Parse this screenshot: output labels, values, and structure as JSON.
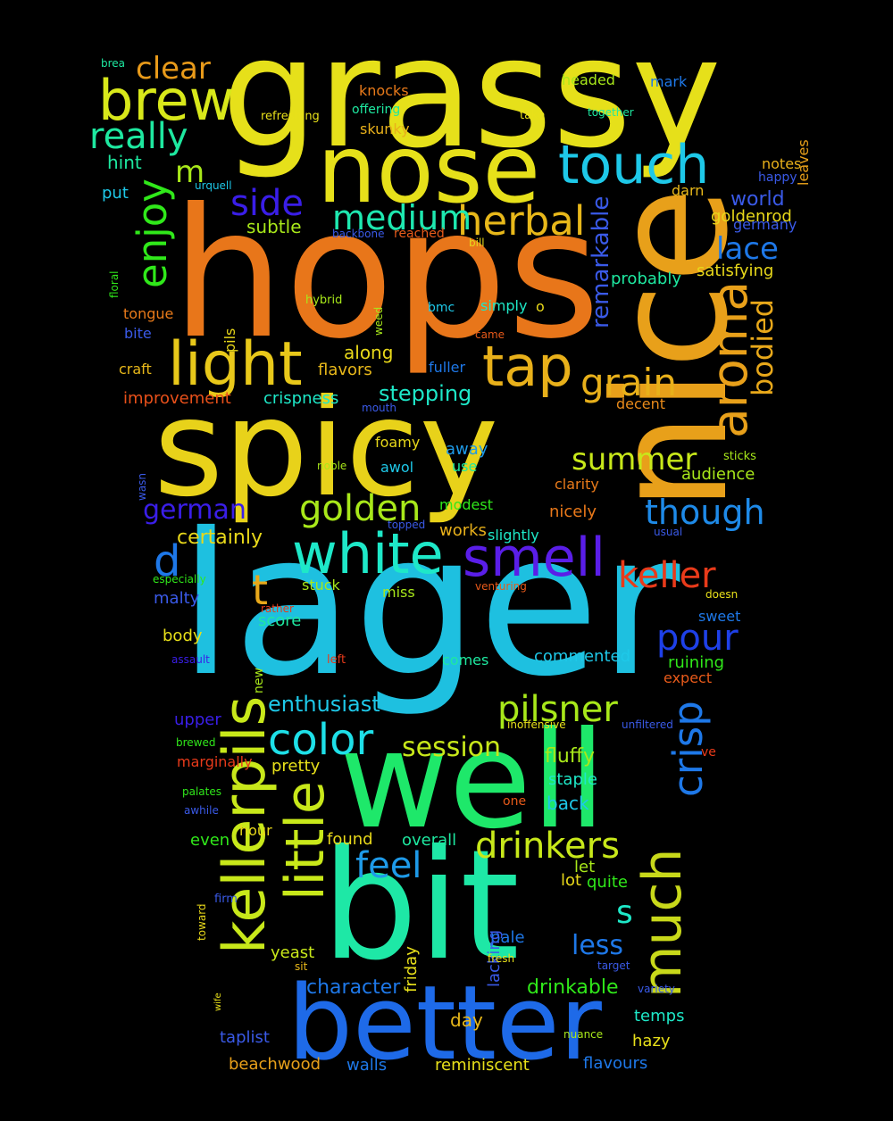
{
  "words": [
    {
      "text": "grassy",
      "color": "#e6e01a"
    },
    {
      "text": "hops",
      "color": "#e8761a"
    },
    {
      "text": "lager",
      "color": "#1ec0e0"
    },
    {
      "text": "spicy",
      "color": "#e8d21a"
    },
    {
      "text": "nice",
      "color": "#e8a01a"
    },
    {
      "text": "bit",
      "color": "#1ee8a6"
    },
    {
      "text": "well",
      "color": "#1ee86a"
    },
    {
      "text": "better",
      "color": "#1e6ae8"
    },
    {
      "text": "nose",
      "color": "#e6e01a"
    },
    {
      "text": "touch",
      "color": "#1ec8e8"
    },
    {
      "text": "white",
      "color": "#1ee8c8"
    },
    {
      "text": "smell",
      "color": "#5a1ee8"
    },
    {
      "text": "light",
      "color": "#e8c81a"
    },
    {
      "text": "tap",
      "color": "#e8b01a"
    },
    {
      "text": "aroma",
      "color": "#e8a01a"
    },
    {
      "text": "kellerpils",
      "color": "#c8e81a"
    },
    {
      "text": "little",
      "color": "#c8e81a"
    },
    {
      "text": "much",
      "color": "#c8d81a"
    },
    {
      "text": "crisp",
      "color": "#1e78e8"
    },
    {
      "text": "brew",
      "color": "#d8e81a"
    },
    {
      "text": "herbal",
      "color": "#e8b81a"
    },
    {
      "text": "color",
      "color": "#1ee0e8"
    },
    {
      "text": "grain",
      "color": "#e8b01a"
    },
    {
      "text": "enjoy",
      "color": "#30e81a"
    },
    {
      "text": "medium",
      "color": "#1ee8b0"
    },
    {
      "text": "side",
      "color": "#3a1ee8"
    },
    {
      "text": "golden",
      "color": "#a8e81a"
    },
    {
      "text": "drinkers",
      "color": "#c8e81a"
    },
    {
      "text": "pilsner",
      "color": "#a8e81a"
    },
    {
      "text": "keller",
      "color": "#e83a1a"
    },
    {
      "text": "pour",
      "color": "#1e40e8"
    },
    {
      "text": "though",
      "color": "#1e8ae8"
    },
    {
      "text": "feel",
      "color": "#1e9ae8"
    },
    {
      "text": "summer",
      "color": "#c8e81a"
    },
    {
      "text": "really",
      "color": "#1ee8a0"
    },
    {
      "text": "clear",
      "color": "#e89a1a"
    },
    {
      "text": "bodied",
      "color": "#e8a81a"
    },
    {
      "text": "remarkable",
      "color": "#3a5ae8"
    },
    {
      "text": "lace",
      "color": "#1e78e8"
    },
    {
      "text": "session",
      "color": "#c8e81a"
    },
    {
      "text": "german",
      "color": "#3a1ee8"
    },
    {
      "text": "enthusiast",
      "color": "#1ec8e8"
    },
    {
      "text": "less",
      "color": "#1e78e8"
    },
    {
      "text": "s",
      "color": "#1ee8c8"
    },
    {
      "text": "d",
      "color": "#1e78e8"
    },
    {
      "text": "t",
      "color": "#e8a81a"
    },
    {
      "text": "m",
      "color": "#a8e81a"
    },
    {
      "text": "stepping",
      "color": "#1ee8c8"
    },
    {
      "text": "certainly",
      "color": "#e8d81a"
    },
    {
      "text": "drinkable",
      "color": "#30e81a"
    },
    {
      "text": "character",
      "color": "#1e78e8"
    },
    {
      "text": "world",
      "color": "#3a5ae8"
    },
    {
      "text": "along",
      "color": "#e8d81a"
    },
    {
      "text": "flavors",
      "color": "#e8b81a"
    },
    {
      "text": "crispness",
      "color": "#1ee8c8"
    },
    {
      "text": "improvement",
      "color": "#e8501a"
    },
    {
      "text": "subtle",
      "color": "#a8e81a"
    },
    {
      "text": "hint",
      "color": "#1ee8a0"
    },
    {
      "text": "put",
      "color": "#1ec8e8"
    },
    {
      "text": "fluffy",
      "color": "#a8e81a"
    },
    {
      "text": "staple",
      "color": "#1ee8c8"
    },
    {
      "text": "back",
      "color": "#1ec8e8"
    },
    {
      "text": "found",
      "color": "#e8d81a"
    },
    {
      "text": "overall",
      "color": "#1ee8a0"
    },
    {
      "text": "hour",
      "color": "#e8d81a"
    },
    {
      "text": "even",
      "color": "#30e81a"
    },
    {
      "text": "taplist",
      "color": "#3a5ae8"
    },
    {
      "text": "beachwood",
      "color": "#e8a01a"
    },
    {
      "text": "walls",
      "color": "#1e78e8"
    },
    {
      "text": "reminiscent",
      "color": "#e8e01a"
    },
    {
      "text": "flavours",
      "color": "#1e78e8"
    },
    {
      "text": "hazy",
      "color": "#e8e01a"
    },
    {
      "text": "temps",
      "color": "#1ee8c8"
    },
    {
      "text": "day",
      "color": "#e8b81a"
    },
    {
      "text": "yeast",
      "color": "#c8e81a"
    },
    {
      "text": "pale",
      "color": "#1e78e8"
    },
    {
      "text": "quite",
      "color": "#30e81a"
    },
    {
      "text": "lot",
      "color": "#e8d81a"
    },
    {
      "text": "let",
      "color": "#a8e81a"
    },
    {
      "text": "friday",
      "color": "#e8e01a"
    },
    {
      "text": "lacking",
      "color": "#3a5ae8"
    },
    {
      "text": "pretty",
      "color": "#e8e01a"
    },
    {
      "text": "upper",
      "color": "#3a1ee8"
    },
    {
      "text": "marginally",
      "color": "#e83a1a"
    },
    {
      "text": "comes",
      "color": "#1ee8a0"
    },
    {
      "text": "commented",
      "color": "#1ec8e8"
    },
    {
      "text": "ruining",
      "color": "#30e81a"
    },
    {
      "text": "expect",
      "color": "#e85a1a"
    },
    {
      "text": "sweet",
      "color": "#1e78e8"
    },
    {
      "text": "score",
      "color": "#1ee8a0"
    },
    {
      "text": "body",
      "color": "#e8e01a"
    },
    {
      "text": "malty",
      "color": "#3a5ae8"
    },
    {
      "text": "stuck",
      "color": "#a8e81a"
    },
    {
      "text": "miss",
      "color": "#a8e81a"
    },
    {
      "text": "works",
      "color": "#e8b01a"
    },
    {
      "text": "slightly",
      "color": "#1ee8c8"
    },
    {
      "text": "modest",
      "color": "#30e81a"
    },
    {
      "text": "nicely",
      "color": "#e8781a"
    },
    {
      "text": "clarity",
      "color": "#e87a1a"
    },
    {
      "text": "audience",
      "color": "#a8e81a"
    },
    {
      "text": "away",
      "color": "#1e9ae8"
    },
    {
      "text": "use",
      "color": "#1ee8a0"
    },
    {
      "text": "awol",
      "color": "#1ec8e8"
    },
    {
      "text": "foamy",
      "color": "#e8d81a"
    },
    {
      "text": "fuller",
      "color": "#1e78e8"
    },
    {
      "text": "decent",
      "color": "#e88a1a"
    },
    {
      "text": "tongue",
      "color": "#e87a1a"
    },
    {
      "text": "bite",
      "color": "#3a5ae8"
    },
    {
      "text": "craft",
      "color": "#e8b81a"
    },
    {
      "text": "pils",
      "color": "#e8d81a"
    },
    {
      "text": "bmc",
      "color": "#1ec8e8"
    },
    {
      "text": "simply",
      "color": "#1ee8c8"
    },
    {
      "text": "o",
      "color": "#e8d81a"
    },
    {
      "text": "probably",
      "color": "#1ee8a0"
    },
    {
      "text": "satisfying",
      "color": "#e8d81a"
    },
    {
      "text": "goldenrod",
      "color": "#e8d81a"
    },
    {
      "text": "germany",
      "color": "#3a5ae8"
    },
    {
      "text": "darn",
      "color": "#e8b81a"
    },
    {
      "text": "notes",
      "color": "#e8b01a"
    },
    {
      "text": "happy",
      "color": "#3a5ae8"
    },
    {
      "text": "headed",
      "color": "#a8e81a"
    },
    {
      "text": "mark",
      "color": "#1e78e8"
    },
    {
      "text": "knocks",
      "color": "#e87a1a"
    },
    {
      "text": "offering",
      "color": "#1ee8a0"
    },
    {
      "text": "skunky",
      "color": "#e8b01a"
    },
    {
      "text": "refreshing",
      "color": "#e8e01a"
    },
    {
      "text": "take",
      "color": "#e8e01a"
    },
    {
      "text": "together",
      "color": "#1ee8a0"
    },
    {
      "text": "leaves",
      "color": "#e8a01a"
    },
    {
      "text": "brea",
      "color": "#1ee8a0"
    },
    {
      "text": "urquell",
      "color": "#1ec8e8"
    },
    {
      "text": "backbone",
      "color": "#3a5ae8"
    },
    {
      "text": "reached",
      "color": "#e85a1a"
    },
    {
      "text": "bill",
      "color": "#e8d81a"
    },
    {
      "text": "floral",
      "color": "#30e81a"
    },
    {
      "text": "hybrid",
      "color": "#a8e81a"
    },
    {
      "text": "weed",
      "color": "#a8e81a"
    },
    {
      "text": "came",
      "color": "#e85a1a"
    },
    {
      "text": "mouth",
      "color": "#3a5ae8"
    },
    {
      "text": "wasn",
      "color": "#3a5ae8"
    },
    {
      "text": "noble",
      "color": "#a8e81a"
    },
    {
      "text": "sticks",
      "color": "#a8e81a"
    },
    {
      "text": "topped",
      "color": "#3a5ae8"
    },
    {
      "text": "usual",
      "color": "#3a5ae8"
    },
    {
      "text": "especially",
      "color": "#30e81a"
    },
    {
      "text": "venturing",
      "color": "#e85a1a"
    },
    {
      "text": "rather",
      "color": "#e83a1a"
    },
    {
      "text": "doesn",
      "color": "#e8e01a"
    },
    {
      "text": "assault",
      "color": "#3a1ee8"
    },
    {
      "text": "left",
      "color": "#e83a1a"
    },
    {
      "text": "new",
      "color": "#a8e81a"
    },
    {
      "text": "inoffensive",
      "color": "#e8e01a"
    },
    {
      "text": "unfiltered",
      "color": "#3a5ae8"
    },
    {
      "text": "ve",
      "color": "#e83a1a"
    },
    {
      "text": "brewed",
      "color": "#30e81a"
    },
    {
      "text": "palates",
      "color": "#30e81a"
    },
    {
      "text": "awhile",
      "color": "#3a5ae8"
    },
    {
      "text": "one",
      "color": "#e85a1a"
    },
    {
      "text": "toward",
      "color": "#e8d81a"
    },
    {
      "text": "firm",
      "color": "#3a5ae8"
    },
    {
      "text": "target",
      "color": "#3a5ae8"
    },
    {
      "text": "fresh",
      "color": "#e8e01a"
    },
    {
      "text": "sit",
      "color": "#e8b81a"
    },
    {
      "text": "wife",
      "color": "#e8e01a"
    },
    {
      "text": "variety",
      "color": "#3a5ae8"
    },
    {
      "text": "nuance",
      "color": "#a8e81a"
    }
  ]
}
